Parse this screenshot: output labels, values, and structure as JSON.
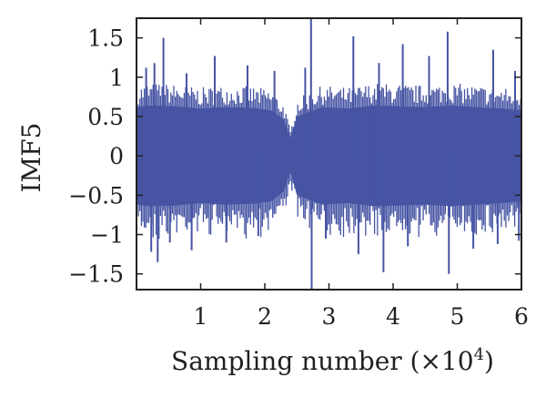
{
  "chart_data": {
    "type": "line",
    "title": "",
    "xlabel": "Sampling number (×10",
    "xlabel_exponent": "4",
    "xlabel_close": ")",
    "ylabel": "IMF5",
    "xlim": [
      0,
      60000
    ],
    "ylim": [
      -1.7,
      1.75
    ],
    "x_ticks": [
      {
        "value": 10000,
        "label": "1"
      },
      {
        "value": 20000,
        "label": "2"
      },
      {
        "value": 30000,
        "label": "3"
      },
      {
        "value": 40000,
        "label": "4"
      },
      {
        "value": 50000,
        "label": "5"
      },
      {
        "value": 60000,
        "label": "6"
      }
    ],
    "y_ticks": [
      {
        "value": 1.5,
        "label": "1.5"
      },
      {
        "value": 1,
        "label": "1"
      },
      {
        "value": 0.5,
        "label": "0.5"
      },
      {
        "value": 0,
        "label": "0"
      },
      {
        "value": -0.5,
        "label": "−0.5"
      },
      {
        "value": -1,
        "label": "−1"
      },
      {
        "value": -1.5,
        "label": "−1.5"
      }
    ],
    "grid": false,
    "series": [
      {
        "color": "#4654a3",
        "x_start": 0,
        "x_end": 60000,
        "envelope": {
          "x": [
            0,
            2000,
            6000,
            10000,
            14000,
            18000,
            21000,
            23000,
            24000,
            25000,
            29000,
            33000,
            37000,
            41000,
            45000,
            49000,
            53000,
            57000,
            60000
          ],
          "upper": [
            0.62,
            0.64,
            0.63,
            0.6,
            0.62,
            0.61,
            0.58,
            0.46,
            0.22,
            0.5,
            0.62,
            0.6,
            0.64,
            0.63,
            0.62,
            0.64,
            0.62,
            0.6,
            0.58
          ],
          "lower": [
            -0.62,
            -0.64,
            -0.63,
            -0.6,
            -0.62,
            -0.61,
            -0.58,
            -0.45,
            -0.2,
            -0.5,
            -0.62,
            -0.6,
            -0.64,
            -0.63,
            -0.62,
            -0.64,
            -0.62,
            -0.6,
            -0.58
          ]
        },
        "peaks": [
          {
            "x": 1500,
            "y": 1.12
          },
          {
            "x": 2300,
            "y": -1.22
          },
          {
            "x": 2800,
            "y": 1.18
          },
          {
            "x": 3300,
            "y": -1.35
          },
          {
            "x": 4200,
            "y": 1.5
          },
          {
            "x": 5200,
            "y": -1.1
          },
          {
            "x": 7800,
            "y": 1.05
          },
          {
            "x": 8600,
            "y": -1.2
          },
          {
            "x": 12200,
            "y": 1.27
          },
          {
            "x": 14000,
            "y": -1.1
          },
          {
            "x": 17300,
            "y": 1.15
          },
          {
            "x": 19000,
            "y": -1.02
          },
          {
            "x": 21500,
            "y": 1.08
          },
          {
            "x": 26300,
            "y": 1.12
          },
          {
            "x": 27200,
            "y": 1.75
          },
          {
            "x": 27300,
            "y": -1.7
          },
          {
            "x": 29500,
            "y": -1.05
          },
          {
            "x": 33800,
            "y": 1.52
          },
          {
            "x": 34600,
            "y": -1.25
          },
          {
            "x": 37800,
            "y": 1.18
          },
          {
            "x": 38500,
            "y": -1.48
          },
          {
            "x": 41500,
            "y": 1.42
          },
          {
            "x": 42300,
            "y": -1.15
          },
          {
            "x": 45600,
            "y": 1.27
          },
          {
            "x": 48500,
            "y": 1.58
          },
          {
            "x": 48700,
            "y": -1.5
          },
          {
            "x": 52500,
            "y": -1.18
          },
          {
            "x": 55600,
            "y": 1.35
          },
          {
            "x": 56300,
            "y": -1.12
          },
          {
            "x": 59000,
            "y": 1.08
          },
          {
            "x": 59600,
            "y": -1.08
          }
        ]
      }
    ]
  }
}
